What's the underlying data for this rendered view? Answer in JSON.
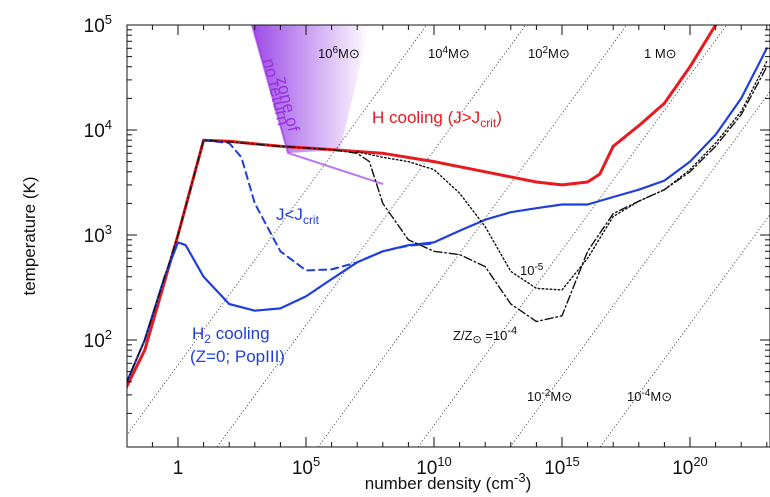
{
  "chart_data": {
    "type": "line",
    "xlabel": "number density (cm",
    "xlabel_sup": "-3",
    "xlabel_end": ")",
    "ylabel": "temperature (K)",
    "x_scale": "log",
    "y_scale": "log",
    "xlim": [
      0.001,
      1e+24
    ],
    "ylim": [
      13,
      100000
    ],
    "x_ticks": [
      {
        "value": 1,
        "base": "1",
        "exp": ""
      },
      {
        "value": 100000.0,
        "base": "10",
        "exp": "5"
      },
      {
        "value": 10000000000.0,
        "base": "10",
        "exp": "10"
      },
      {
        "value": 1000000000000000.0,
        "base": "10",
        "exp": "15"
      },
      {
        "value": 1e+20,
        "base": "10",
        "exp": "20"
      }
    ],
    "y_ticks": [
      {
        "value": 100,
        "base": "10",
        "exp": "2"
      },
      {
        "value": 1000,
        "base": "10",
        "exp": "3"
      },
      {
        "value": 10000,
        "base": "10",
        "exp": "4"
      },
      {
        "value": 100000,
        "base": "10",
        "exp": "5"
      }
    ],
    "series": [
      {
        "name": "H cooling (J>Jcrit)",
        "color": "#e8191f",
        "style": "solid",
        "points": [
          [
            0.003,
            20
          ],
          [
            0.05,
            80
          ],
          [
            1,
            1000
          ],
          [
            10,
            8000
          ],
          [
            100,
            7800
          ],
          [
            10000.0,
            7000
          ],
          [
            1000000.0,
            6500
          ],
          [
            100000000.0,
            6000
          ],
          [
            10000000000.0,
            5000
          ],
          [
            1000000000000.0,
            4000
          ],
          [
            100000000000000.0,
            3200
          ],
          [
            1000000000000000.0,
            3000
          ],
          [
            1e+16,
            3200
          ],
          [
            3e+16,
            3800
          ],
          [
            1e+17,
            7000
          ],
          [
            1e+18,
            11000
          ],
          [
            1e+19,
            18000
          ],
          [
            1e+20,
            40000
          ],
          [
            1e+21,
            100000
          ]
        ]
      },
      {
        "name": "J<Jcrit",
        "color": "#1f3ede",
        "style": "dashed",
        "points": [
          [
            10,
            8000
          ],
          [
            100,
            7500
          ],
          [
            300,
            5500
          ],
          [
            1000,
            2000
          ],
          [
            10000.0,
            700
          ],
          [
            100000.0,
            460
          ],
          [
            1000000.0,
            470
          ],
          [
            10000000.0,
            550
          ],
          [
            100000000.0,
            700
          ],
          [
            1000000000.0,
            790
          ],
          [
            10000000000.0,
            830
          ]
        ]
      },
      {
        "name": "H2 cooling (Z=0; PopIII)",
        "color": "#1f3ede",
        "style": "solid",
        "points": [
          [
            0.003,
            20
          ],
          [
            0.05,
            100
          ],
          [
            0.3,
            400
          ],
          [
            1,
            850
          ],
          [
            2,
            800
          ],
          [
            10,
            400
          ],
          [
            100,
            220
          ],
          [
            1000.0,
            190
          ],
          [
            10000.0,
            200
          ],
          [
            100000.0,
            260
          ],
          [
            1000000.0,
            380
          ],
          [
            10000000.0,
            550
          ],
          [
            100000000.0,
            700
          ],
          [
            1000000000.0,
            800
          ],
          [
            10000000000.0,
            850
          ],
          [
            100000000000.0,
            1100
          ],
          [
            1000000000000.0,
            1400
          ],
          [
            10000000000000.0,
            1650
          ],
          [
            100000000000000.0,
            1800
          ],
          [
            1000000000000000.0,
            1950
          ],
          [
            1e+16,
            1950
          ],
          [
            1e+17,
            2300
          ],
          [
            1e+18,
            2700
          ],
          [
            1e+19,
            3300
          ],
          [
            1e+20,
            5000
          ],
          [
            1e+21,
            9000
          ],
          [
            1e+22,
            20000
          ],
          [
            1e+23,
            60000
          ]
        ]
      },
      {
        "name": "Z/Z⊙=10⁻⁴",
        "color": "#111111",
        "style": "dashdot",
        "points": [
          [
            0.003,
            20
          ],
          [
            0.05,
            100
          ],
          [
            1,
            1000
          ],
          [
            10,
            8000
          ],
          [
            100,
            7700
          ],
          [
            10000.0,
            7000
          ],
          [
            1000000.0,
            6500
          ],
          [
            10000000.0,
            6000
          ],
          [
            30000000.0,
            5000
          ],
          [
            100000000.0,
            2000
          ],
          [
            1000000000.0,
            900
          ],
          [
            10000000000.0,
            700
          ],
          [
            100000000000.0,
            650
          ],
          [
            1000000000000.0,
            500
          ],
          [
            10000000000000.0,
            220
          ],
          [
            100000000000000.0,
            150
          ],
          [
            1000000000000000.0,
            170
          ],
          [
            1e+16,
            700
          ],
          [
            1e+17,
            1600
          ],
          [
            1e+18,
            2100
          ],
          [
            1e+19,
            2700
          ],
          [
            1e+20,
            4000
          ],
          [
            1e+21,
            7000
          ],
          [
            1e+22,
            14000
          ],
          [
            1e+23,
            40000
          ]
        ]
      },
      {
        "name": "10⁻⁵",
        "color": "#111111",
        "style": "dotted",
        "points": [
          [
            10000000.0,
            6200
          ],
          [
            100000000.0,
            5500
          ],
          [
            1000000000.0,
            5000
          ],
          [
            10000000000.0,
            4200
          ],
          [
            100000000000.0,
            2500
          ],
          [
            1000000000000.0,
            1200
          ],
          [
            10000000000000.0,
            450
          ],
          [
            100000000000000.0,
            310
          ],
          [
            1000000000000000.0,
            300
          ],
          [
            1e+16,
            600
          ],
          [
            1e+17,
            1500
          ],
          [
            1e+18,
            2100
          ],
          [
            1e+19,
            2700
          ],
          [
            1e+20,
            4200
          ],
          [
            1e+21,
            7500
          ],
          [
            1e+22,
            15000
          ],
          [
            1e+23,
            45000
          ]
        ]
      }
    ],
    "jeans_lines": [
      {
        "label_base": "10",
        "label_exp": "6",
        "unit": "M⊙",
        "label_pos": "top"
      },
      {
        "label_base": "10",
        "label_exp": "4",
        "unit": "M⊙",
        "label_pos": "top"
      },
      {
        "label_base": "10",
        "label_exp": "2",
        "unit": "M⊙",
        "label_pos": "top"
      },
      {
        "label_base": "1",
        "label_exp": "",
        "unit": "M⊙",
        "label_pos": "top"
      },
      {
        "label_base": "10",
        "label_exp": "-2",
        "unit": "M⊙",
        "label_pos": "bottom"
      },
      {
        "label_base": "10",
        "label_exp": "-4",
        "unit": "M⊙",
        "label_pos": "bottom"
      }
    ],
    "annotations": {
      "zone_line1": "zone of",
      "zone_line2": "no return",
      "h_cooling": "H cooling (J>J",
      "h_cooling_sub": "crit",
      "h_cooling_end": ")",
      "j_lt": "J<J",
      "j_lt_sub": "crit",
      "h2_line1_pre": "H",
      "h2_line1_sub": "2",
      "h2_line1_post": " cooling",
      "h2_line2": "(Z=0; PopIII)",
      "z_pre": "Z/Z",
      "z_sym": "⊙",
      "z_eq": " =10",
      "z_exp": "-4",
      "ten_minus5_base": "10",
      "ten_minus5_exp": "-5"
    },
    "colors": {
      "red": "#e8191f",
      "blue": "#1f3ede",
      "purple": "#9b30e0",
      "black": "#111111"
    }
  }
}
